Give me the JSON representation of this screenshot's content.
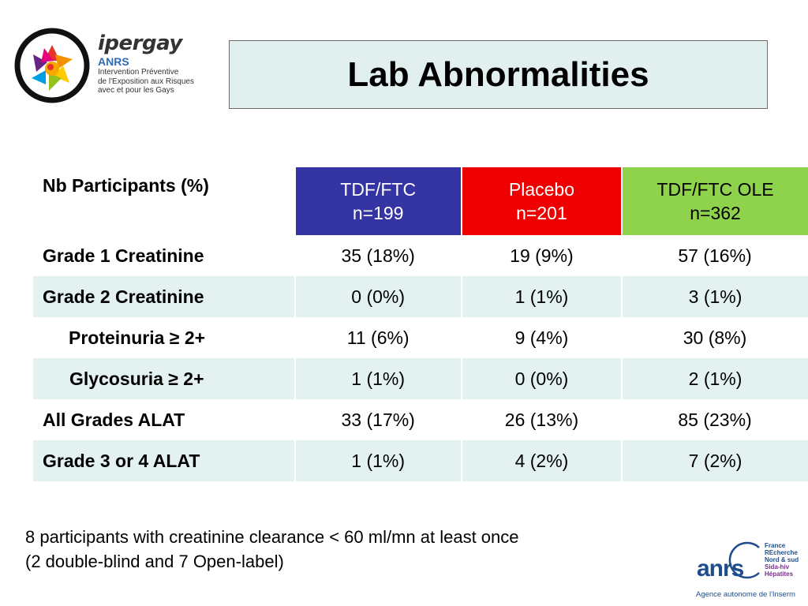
{
  "logo": {
    "name": "ipergay",
    "org": "ANRS",
    "subtitle_lines": [
      "Intervention Préventive",
      "de l'Exposition aux Risques",
      "avec et pour les Gays"
    ]
  },
  "title": "Lab Abnormalities",
  "table": {
    "corner_header": "Nb Participants (%)",
    "columns": [
      {
        "line1": "TDF/FTC",
        "line2": "n=199",
        "color": "#3434a2"
      },
      {
        "line1": "Placebo",
        "line2": "n=201",
        "color": "#ee0000"
      },
      {
        "line1": "TDF/FTC OLE",
        "line2": "n=362",
        "color": "#8fd24c"
      }
    ],
    "rows": [
      {
        "label": "Grade 1 Creatinine",
        "values": [
          "35 (18%)",
          "19 (9%)",
          "57 (16%)"
        ]
      },
      {
        "label": "Grade 2 Creatinine",
        "values": [
          "0 (0%)",
          "1 (1%)",
          "3 (1%)"
        ]
      },
      {
        "label": "Proteinuria ≥ 2+",
        "values": [
          "11 (6%)",
          "9 (4%)",
          "30 (8%)"
        ]
      },
      {
        "label": "Glycosuria ≥ 2+",
        "values": [
          "1 (1%)",
          "0 (0%)",
          "2 (1%)"
        ]
      },
      {
        "label": "All Grades ALAT",
        "values": [
          "33 (17%)",
          "26 (13%)",
          "85 (23%)"
        ]
      },
      {
        "label": "Grade 3 or 4 ALAT",
        "values": [
          "1 (1%)",
          "4 (2%)",
          "7 (2%)"
        ]
      }
    ]
  },
  "footnote": {
    "line1": "8 participants with creatinine clearance < 60 ml/mn at least once",
    "line2": "(2 double-blind and 7 Open-label)"
  },
  "anrs_logo": {
    "word": "anrs",
    "lines": [
      "France",
      "REcherche",
      "Nord & sud",
      "Sida-hiv",
      "Hépatites"
    ],
    "tagline": "Agence autonome de l'Inserm"
  }
}
